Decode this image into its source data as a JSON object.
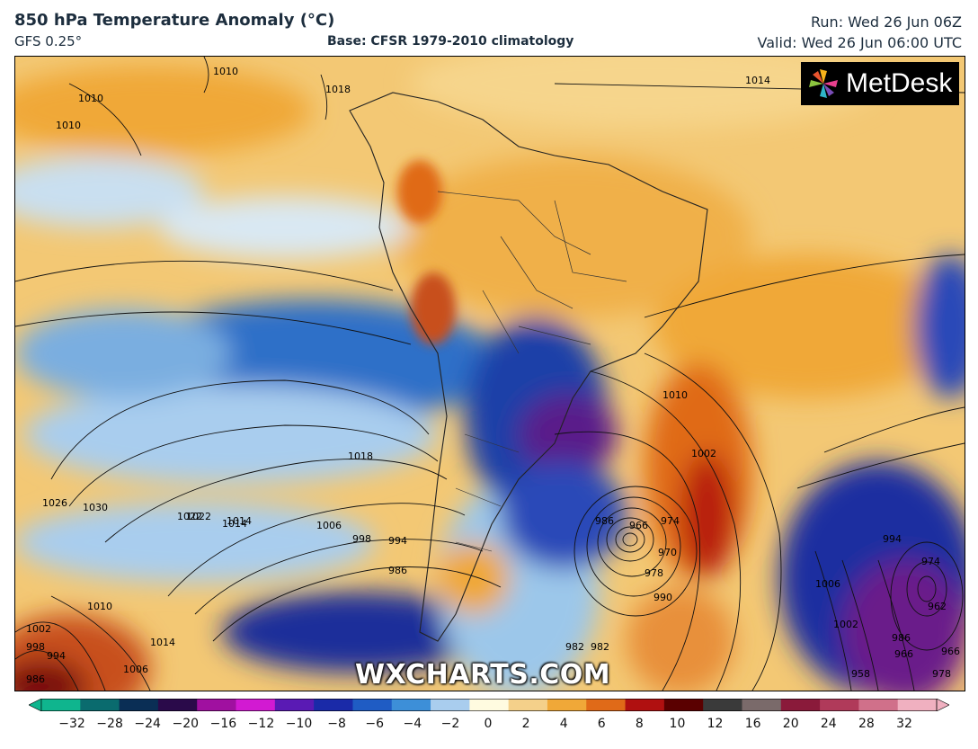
{
  "header": {
    "title": "850 hPa Temperature Anomaly (°C)",
    "model": "GFS 0.25°",
    "base": "Base: CFSR 1979-2010 climatology",
    "run": "Run: Wed 26 Jun 06Z",
    "valid": "Valid: Wed 26 Jun 06:00 UTC"
  },
  "logo": {
    "text": "MetDesk",
    "icon": "metdesk-pinwheel-icon"
  },
  "watermark": "WXCHARTS.COM",
  "isobar_labels": [
    "1014",
    "1010",
    "1010",
    "1010",
    "1018",
    "1010",
    "1002",
    "1022",
    "1014",
    "1018",
    "1030",
    "1026",
    "1022",
    "1014",
    "1006",
    "998",
    "994",
    "986",
    "982",
    "986",
    "966",
    "974",
    "978",
    "970",
    "990",
    "982",
    "1002",
    "998",
    "994",
    "986",
    "1010",
    "1014",
    "1006",
    "1006",
    "1002",
    "994",
    "986",
    "966",
    "974",
    "962",
    "978",
    "966",
    "958"
  ],
  "colorbar": {
    "ticks": [
      "−32",
      "−28",
      "−24",
      "−20",
      "−16",
      "−12",
      "−10",
      "−8",
      "−6",
      "−4",
      "−2",
      "0",
      "2",
      "4",
      "6",
      "8",
      "10",
      "12",
      "16",
      "20",
      "24",
      "28",
      "32"
    ],
    "colors": [
      "#0fb58e",
      "#0a6b6e",
      "#0a2e55",
      "#2a0a4a",
      "#a010a0",
      "#d21ad2",
      "#5a1ab4",
      "#1a2aa8",
      "#1f5cc4",
      "#3d8fd8",
      "#a9cdee",
      "#fffbe0",
      "#f4d08a",
      "#f0a838",
      "#e06a18",
      "#b01010",
      "#5a0000",
      "#3a3a3a",
      "#7a6a6a",
      "#8a1a3a",
      "#b03a5a",
      "#d0708a",
      "#f0b0c0"
    ]
  }
}
